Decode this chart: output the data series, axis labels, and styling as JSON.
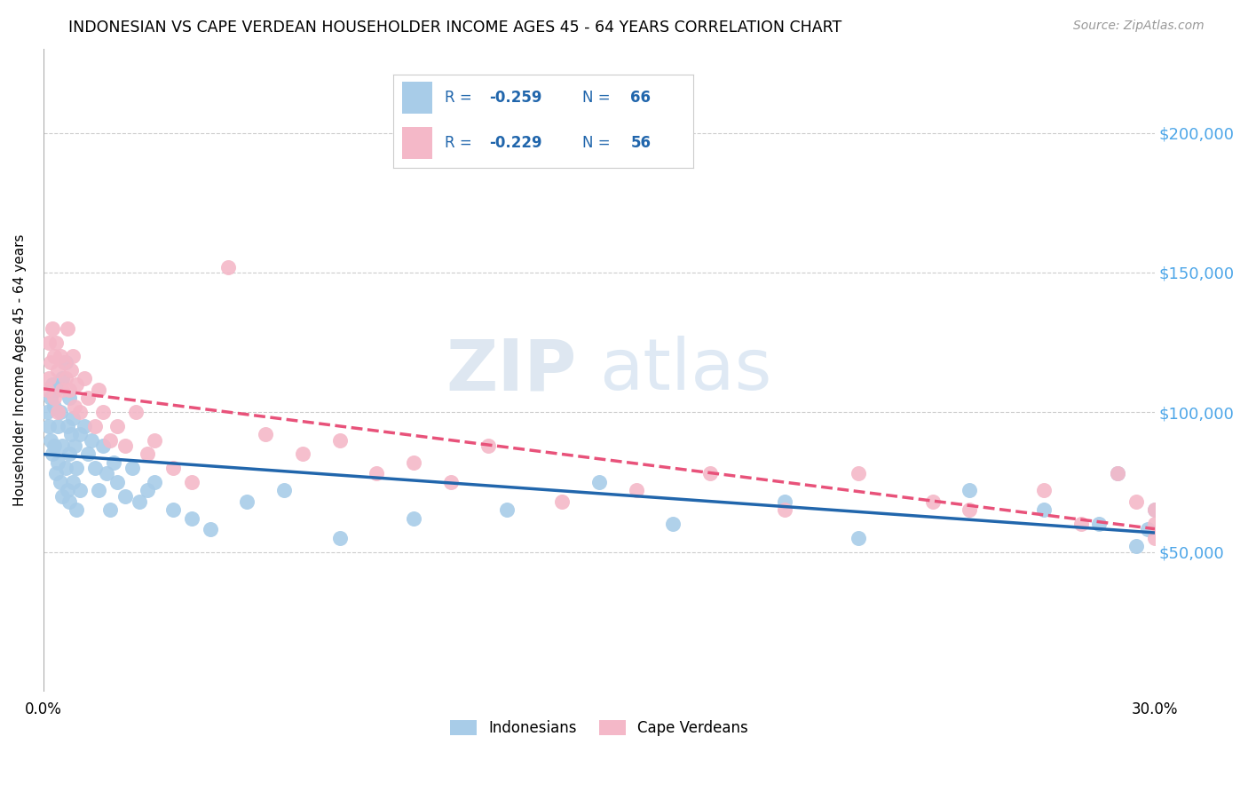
{
  "title": "INDONESIAN VS CAPE VERDEAN HOUSEHOLDER INCOME AGES 45 - 64 YEARS CORRELATION CHART",
  "source": "Source: ZipAtlas.com",
  "ylabel": "Householder Income Ages 45 - 64 years",
  "xlim": [
    0.0,
    30.0
  ],
  "ylim": [
    0,
    230000
  ],
  "yticks": [
    0,
    50000,
    100000,
    150000,
    200000
  ],
  "xticks": [
    0.0,
    5.0,
    10.0,
    15.0,
    20.0,
    25.0,
    30.0
  ],
  "xtick_labels": [
    "0.0%",
    "",
    "",
    "",
    "",
    "",
    "30.0%"
  ],
  "blue_scatter_color": "#a8cce8",
  "pink_scatter_color": "#f4b8c8",
  "blue_line_color": "#2166ac",
  "pink_line_color": "#e8527a",
  "legend_text_color": "#2166ac",
  "yaxis_label_color": "#4da6e8",
  "R_blue": -0.259,
  "N_blue": 66,
  "R_pink": -0.229,
  "N_pink": 56,
  "legend_label_blue": "Indonesians",
  "legend_label_pink": "Cape Verdeans",
  "watermark_zip": "ZIP",
  "watermark_atlas": "atlas",
  "indonesian_x": [
    0.1,
    0.15,
    0.2,
    0.2,
    0.25,
    0.25,
    0.3,
    0.3,
    0.35,
    0.35,
    0.4,
    0.4,
    0.45,
    0.45,
    0.5,
    0.5,
    0.5,
    0.6,
    0.6,
    0.65,
    0.65,
    0.7,
    0.7,
    0.7,
    0.75,
    0.8,
    0.8,
    0.85,
    0.9,
    0.9,
    1.0,
    1.0,
    1.1,
    1.2,
    1.3,
    1.4,
    1.5,
    1.6,
    1.7,
    1.8,
    1.9,
    2.0,
    2.2,
    2.4,
    2.6,
    2.8,
    3.0,
    3.5,
    4.0,
    4.5,
    5.5,
    6.5,
    8.0,
    10.0,
    12.5,
    15.0,
    17.0,
    20.0,
    22.0,
    25.0,
    27.0,
    28.5,
    29.0,
    29.5,
    29.8,
    30.0
  ],
  "indonesian_y": [
    100000,
    95000,
    105000,
    90000,
    110000,
    85000,
    102000,
    88000,
    108000,
    78000,
    95000,
    82000,
    100000,
    75000,
    112000,
    88000,
    70000,
    118000,
    80000,
    95000,
    72000,
    105000,
    85000,
    68000,
    92000,
    98000,
    75000,
    88000,
    80000,
    65000,
    92000,
    72000,
    95000,
    85000,
    90000,
    80000,
    72000,
    88000,
    78000,
    65000,
    82000,
    75000,
    70000,
    80000,
    68000,
    72000,
    75000,
    65000,
    62000,
    58000,
    68000,
    72000,
    55000,
    62000,
    65000,
    75000,
    60000,
    68000,
    55000,
    72000,
    65000,
    60000,
    78000,
    52000,
    58000,
    65000
  ],
  "capeverdean_x": [
    0.1,
    0.15,
    0.15,
    0.2,
    0.25,
    0.3,
    0.3,
    0.35,
    0.4,
    0.4,
    0.45,
    0.5,
    0.55,
    0.6,
    0.65,
    0.7,
    0.75,
    0.8,
    0.85,
    0.9,
    1.0,
    1.1,
    1.2,
    1.4,
    1.5,
    1.6,
    1.8,
    2.0,
    2.2,
    2.5,
    2.8,
    3.0,
    3.5,
    4.0,
    5.0,
    6.0,
    7.0,
    8.0,
    9.0,
    10.0,
    11.0,
    12.0,
    14.0,
    16.0,
    18.0,
    20.0,
    22.0,
    24.0,
    25.0,
    27.0,
    28.0,
    29.0,
    29.5,
    30.0,
    30.0,
    30.0
  ],
  "capeverdean_y": [
    108000,
    125000,
    112000,
    118000,
    130000,
    120000,
    105000,
    125000,
    115000,
    100000,
    120000,
    108000,
    118000,
    112000,
    130000,
    108000,
    115000,
    120000,
    102000,
    110000,
    100000,
    112000,
    105000,
    95000,
    108000,
    100000,
    90000,
    95000,
    88000,
    100000,
    85000,
    90000,
    80000,
    75000,
    152000,
    92000,
    85000,
    90000,
    78000,
    82000,
    75000,
    88000,
    68000,
    72000,
    78000,
    65000,
    78000,
    68000,
    65000,
    72000,
    60000,
    78000,
    68000,
    60000,
    55000,
    65000
  ]
}
